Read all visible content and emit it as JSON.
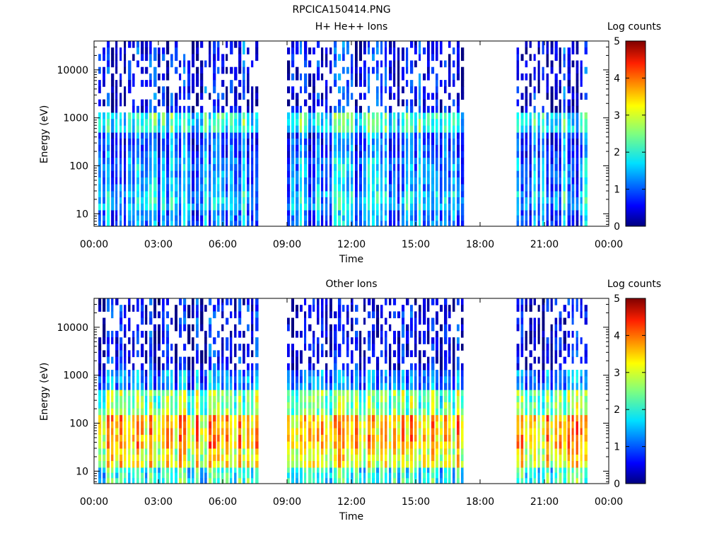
{
  "page_title": "RPCICA150414.PNG",
  "colorbar": {
    "label": "Log counts",
    "ticks": [
      "0",
      "1",
      "2",
      "3",
      "4",
      "5"
    ]
  },
  "chart_data": [
    {
      "type": "heatmap",
      "title": "H+ He++ Ions",
      "xlabel": "Time",
      "ylabel": "Energy (eV)",
      "xlim": [
        "00:00",
        "24:00"
      ],
      "ylim": [
        5.5,
        40000
      ],
      "y_scale": "log",
      "x_ticks": [
        "00:00",
        "03:00",
        "06:00",
        "09:00",
        "12:00",
        "15:00",
        "18:00",
        "21:00",
        "00:00"
      ],
      "y_ticks": [
        "10",
        "100",
        "1000",
        "10000"
      ],
      "colorbar_range": [
        0,
        5
      ],
      "data_segments_hours": [
        [
          0.2,
          7.6
        ],
        [
          9.0,
          17.3
        ],
        [
          19.7,
          22.9
        ]
      ],
      "bands": [
        {
          "energy_low": 5.5,
          "energy_high": 12,
          "log_counts": 1.2
        },
        {
          "energy_low": 12,
          "energy_high": 30,
          "log_counts": 1.6
        },
        {
          "energy_low": 30,
          "energy_high": 150,
          "log_counts": 1.3
        },
        {
          "energy_low": 150,
          "energy_high": 500,
          "log_counts": 1.0
        },
        {
          "energy_low": 500,
          "energy_high": 1300,
          "log_counts": 2.0
        },
        {
          "energy_low": 1300,
          "energy_high": 40000,
          "log_counts": 0.6
        }
      ]
    },
    {
      "type": "heatmap",
      "title": "Other Ions",
      "xlabel": "Time",
      "ylabel": "Energy (eV)",
      "xlim": [
        "00:00",
        "24:00"
      ],
      "ylim": [
        5.5,
        40000
      ],
      "y_scale": "log",
      "x_ticks": [
        "00:00",
        "03:00",
        "06:00",
        "09:00",
        "12:00",
        "15:00",
        "18:00",
        "21:00",
        "00:00"
      ],
      "y_ticks": [
        "10",
        "100",
        "1000",
        "10000"
      ],
      "colorbar_range": [
        0,
        5
      ],
      "data_segments_hours": [
        [
          0.2,
          7.6
        ],
        [
          9.0,
          17.3
        ],
        [
          19.7,
          22.9
        ]
      ],
      "bands": [
        {
          "energy_low": 5.5,
          "energy_high": 12,
          "log_counts": 2.0
        },
        {
          "energy_low": 12,
          "energy_high": 30,
          "log_counts": 3.0
        },
        {
          "energy_low": 30,
          "energy_high": 150,
          "log_counts": 3.4
        },
        {
          "energy_low": 150,
          "energy_high": 500,
          "log_counts": 2.4
        },
        {
          "energy_low": 500,
          "energy_high": 1300,
          "log_counts": 1.2
        },
        {
          "energy_low": 1300,
          "energy_high": 40000,
          "log_counts": 0.5
        }
      ]
    }
  ]
}
